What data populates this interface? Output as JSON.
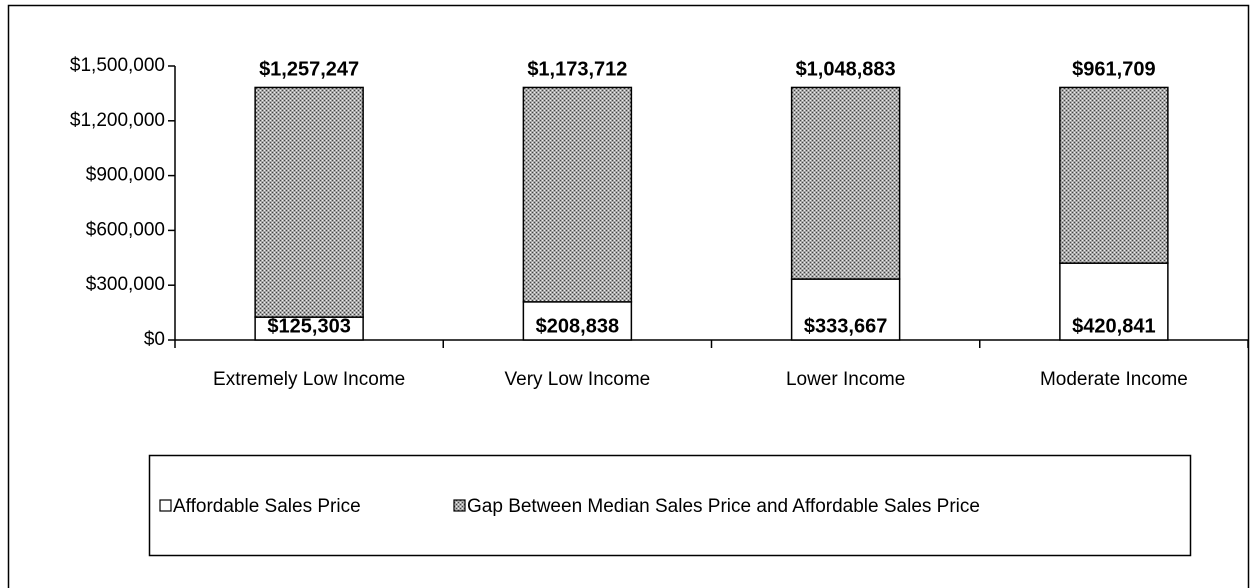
{
  "chart_data": {
    "type": "stacked_bar",
    "categories": [
      "Extremely Low Income",
      "Very Low Income",
      "Lower Income",
      "Moderate Income"
    ],
    "series": [
      {
        "name": "Affordable Sales Price",
        "color": "#ffffff",
        "values": [
          125303,
          208838,
          333667,
          420841
        ],
        "value_labels": [
          "$125,303",
          "$208,838",
          "$333,667",
          "$420,841"
        ]
      },
      {
        "name": "Gap Between Median Sales Price and Affordable Sales Price",
        "color": "#a8a8a8",
        "values": [
          1257247,
          1173712,
          1048883,
          961709
        ],
        "value_labels": [
          "$1,257,247",
          "$1,173,712",
          "$1,048,883",
          "$961,709"
        ]
      }
    ],
    "ylim": [
      0,
      1500000
    ],
    "yticks": [
      {
        "value": 0,
        "label": "$0"
      },
      {
        "value": 300000,
        "label": "$300,000"
      },
      {
        "value": 600000,
        "label": "$600,000"
      },
      {
        "value": 900000,
        "label": "$900,000"
      },
      {
        "value": 1200000,
        "label": "$1,200,000"
      },
      {
        "value": 1500000,
        "label": "$1,500,000"
      }
    ],
    "grid": false,
    "legend": "bottom"
  }
}
